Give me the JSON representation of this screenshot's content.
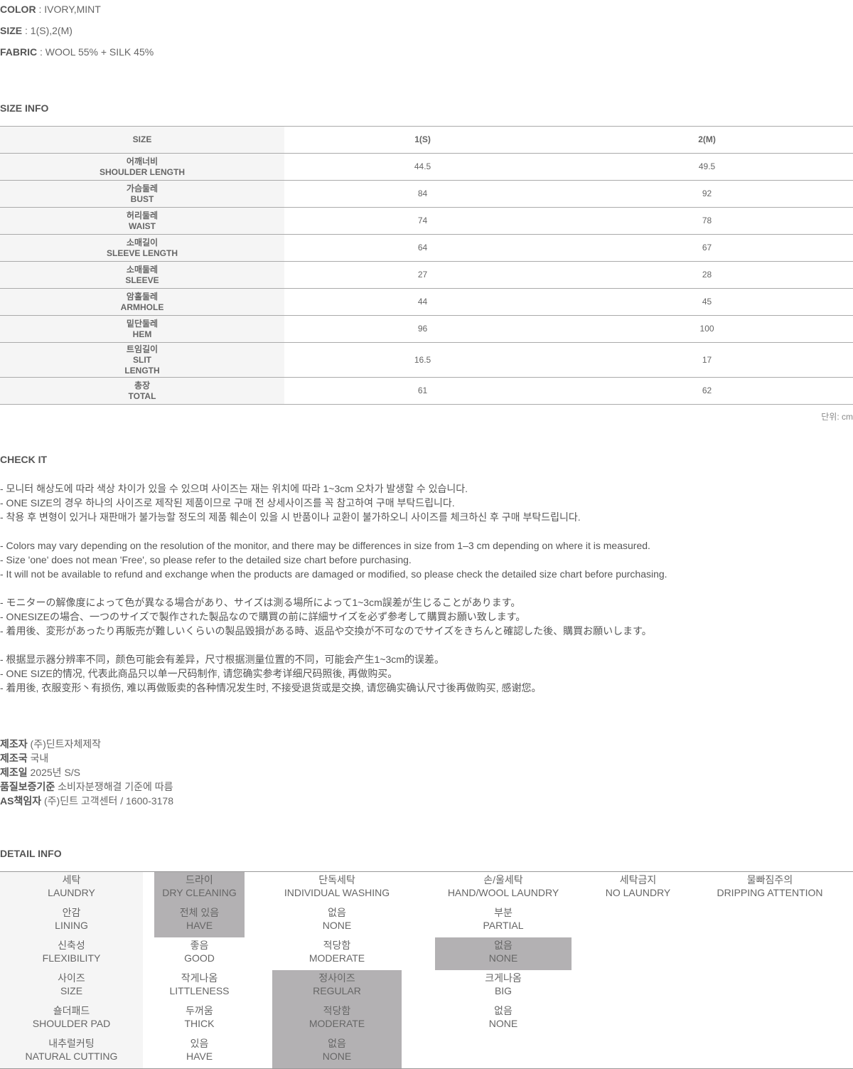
{
  "specs": [
    {
      "label": "COLOR",
      "value": " : IVORY,MINT"
    },
    {
      "label": "SIZE",
      "value": " : 1(S),2(M)"
    },
    {
      "label": "FABRIC",
      "value": " : WOOL 55% + SILK 45%"
    }
  ],
  "size_info": {
    "title": "SIZE INFO",
    "header": [
      "SIZE",
      "1(S)",
      "2(M)"
    ],
    "rows": [
      {
        "ko": "어깨너비",
        "en": "SHOULDER LENGTH",
        "s": "44.5",
        "m": "49.5"
      },
      {
        "ko": "가슴둘레",
        "en": "BUST",
        "s": "84",
        "m": "92"
      },
      {
        "ko": "허리둘레",
        "en": "WAIST",
        "s": "74",
        "m": "78"
      },
      {
        "ko": "소매길이",
        "en": "SLEEVE LENGTH",
        "s": "64",
        "m": "67"
      },
      {
        "ko": "소매둘레",
        "en": "SLEEVE",
        "s": "27",
        "m": "28"
      },
      {
        "ko": "암홀둘레",
        "en": "ARMHOLE",
        "s": "44",
        "m": "45"
      },
      {
        "ko": "밑단둘레",
        "en": "HEM",
        "s": "96",
        "m": "100"
      },
      {
        "ko": "트임길이",
        "en": "SLIT",
        "en2": "LENGTH",
        "s": "16.5",
        "m": "17"
      },
      {
        "ko": "총장",
        "en": "TOTAL",
        "s": "61",
        "m": "62"
      }
    ],
    "unit": "단위: cm"
  },
  "check_it": {
    "title": "CHECK IT",
    "lines": [
      "- 모니터 해상도에 따라 색상 차이가 있을 수 있으며 사이즈는 재는 위치에 따라 1~3cm 오차가 발생할 수 있습니다.",
      "- ONE SIZE의 경우 하나의 사이즈로 제작된 제품이므로 구매 전 상세사이즈를 꼭 참고하여 구매 부탁드립니다.",
      "- 착용 후 변형이 있거나 재판매가 불가능할 정도의 제품 훼손이 있을 시 반품이나 교환이 불가하오니 사이즈를 체크하신 후 구매 부탁드립니다.",
      "",
      "- Colors may vary depending on the resolution of the monitor, and there may be differences in size from 1–3 cm depending on where it is measured.",
      "- Size 'one' does not mean 'Free', so please refer to the detailed size chart before purchasing.",
      "- It will not be available to refund and exchange when the products are damaged or modified, so please check the detailed size chart before purchasing.",
      "",
      "- モニターの解像度によって色が異なる場合があり、サイズは測る場所によって1~3cm誤差が生じることがあります。",
      "- ONESIZEの場合、一つのサイズで製作された製品なので購買の前に詳細サイズを必ず参考して購買お願い致します。",
      "- 着用後、変形があったり再販売が難しいくらいの製品毀損がある時、返品や交換が不可なのでサイズをきちんと確認した後、購買お願いします。",
      "",
      "- 根据显示器分辨率不同，颜色可能会有差异，尺寸根据测量位置的不同，可能会产生1~3cm的误差。",
      "- ONE SIZE的情况, 代表此商品只以单一尺码制作, 请您确实参考详细尺码照後, 再做购买。",
      "- 着用後, 衣服变形丶有损伤, 难以再做贩卖的各种情况发生时, 不接受退货或是交换, 请您确实确认尺寸後再做购买, 感谢您。"
    ]
  },
  "maker": [
    {
      "label": "제조자",
      "value": " (주)딘트자체제작"
    },
    {
      "label": "제조국",
      "value": " 국내"
    },
    {
      "label": "제조일",
      "value": " 2025년 S/S"
    },
    {
      "label": "품질보증기준",
      "value": " 소비자분쟁해결 기준에 따름"
    },
    {
      "label": "AS책임자",
      "value": " (주)딘트 고객센터 / 1600-3178"
    }
  ],
  "detail_info": {
    "title": "DETAIL INFO",
    "highlight_color": "#b3b1b3",
    "rows": [
      {
        "ko": "세탁",
        "en": "LAUNDRY",
        "options": [
          {
            "ko": "드라이",
            "en": "DRY CLEANING",
            "sel": true
          },
          {
            "ko": "단독세탁",
            "en": "INDIVIDUAL WASHING"
          },
          {
            "ko": "손/울세탁",
            "en": "HAND/WOOL LAUNDRY"
          },
          {
            "ko": "세탁금지",
            "en": "NO LAUNDRY"
          },
          {
            "ko": "물빠짐주의",
            "en": "DRIPPING ATTENTION"
          }
        ]
      },
      {
        "ko": "안감",
        "en": "LINING",
        "options": [
          {
            "ko": "전체 있음",
            "en": "HAVE",
            "sel": true
          },
          {
            "ko": "없음",
            "en": "NONE"
          },
          {
            "ko": "부분",
            "en": "PARTIAL"
          }
        ]
      },
      {
        "ko": "신축성",
        "en": "FLEXIBILITY",
        "options": [
          {
            "ko": "좋음",
            "en": "GOOD"
          },
          {
            "ko": "적당함",
            "en": "MODERATE"
          },
          {
            "ko": "없음",
            "en": "NONE",
            "sel": true
          }
        ]
      },
      {
        "ko": "사이즈",
        "en": "SIZE",
        "options": [
          {
            "ko": "작게나옴",
            "en": "LITTLENESS"
          },
          {
            "ko": "정사이즈",
            "en": "REGULAR",
            "sel": true
          },
          {
            "ko": "크게나옴",
            "en": "BIG"
          }
        ]
      },
      {
        "ko": "숄더패드",
        "en": "SHOULDER PAD",
        "options": [
          {
            "ko": "두꺼움",
            "en": "THICK"
          },
          {
            "ko": "적당함",
            "en": "MODERATE",
            "sel": true
          },
          {
            "ko": "없음",
            "en": "NONE"
          }
        ]
      },
      {
        "ko": "내추럴커팅",
        "en": "NATURAL CUTTING",
        "options": [
          {
            "ko": "있음",
            "en": "HAVE"
          },
          {
            "ko": "없음",
            "en": "NONE",
            "sel": true
          }
        ]
      }
    ]
  }
}
